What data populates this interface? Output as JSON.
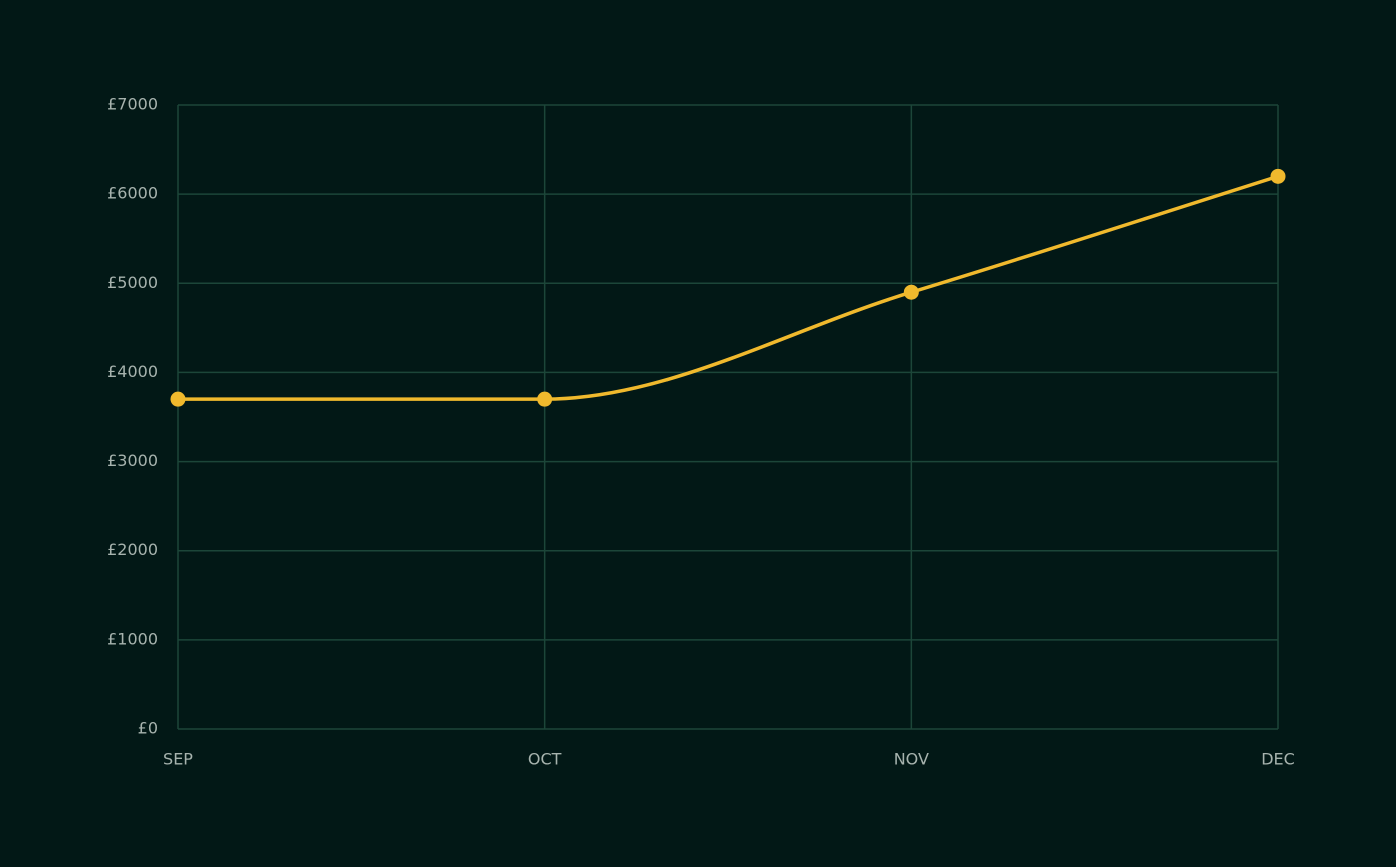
{
  "chart_data": {
    "type": "line",
    "categories": [
      "SEP",
      "OCT",
      "NOV",
      "DEC"
    ],
    "values": [
      3700,
      3700,
      4900,
      6200
    ],
    "color": "#f0b92d",
    "ylim": [
      0,
      7000
    ],
    "yticks": [
      {
        "value": 0,
        "label": "£0"
      },
      {
        "value": 1000,
        "label": "£1000"
      },
      {
        "value": 2000,
        "label": "£2000"
      },
      {
        "value": 3000,
        "label": "£3000"
      },
      {
        "value": 4000,
        "label": "£4000"
      },
      {
        "value": 5000,
        "label": "£5000"
      },
      {
        "value": 6000,
        "label": "£6000"
      },
      {
        "value": 7000,
        "label": "£7000"
      }
    ],
    "grid": true
  }
}
